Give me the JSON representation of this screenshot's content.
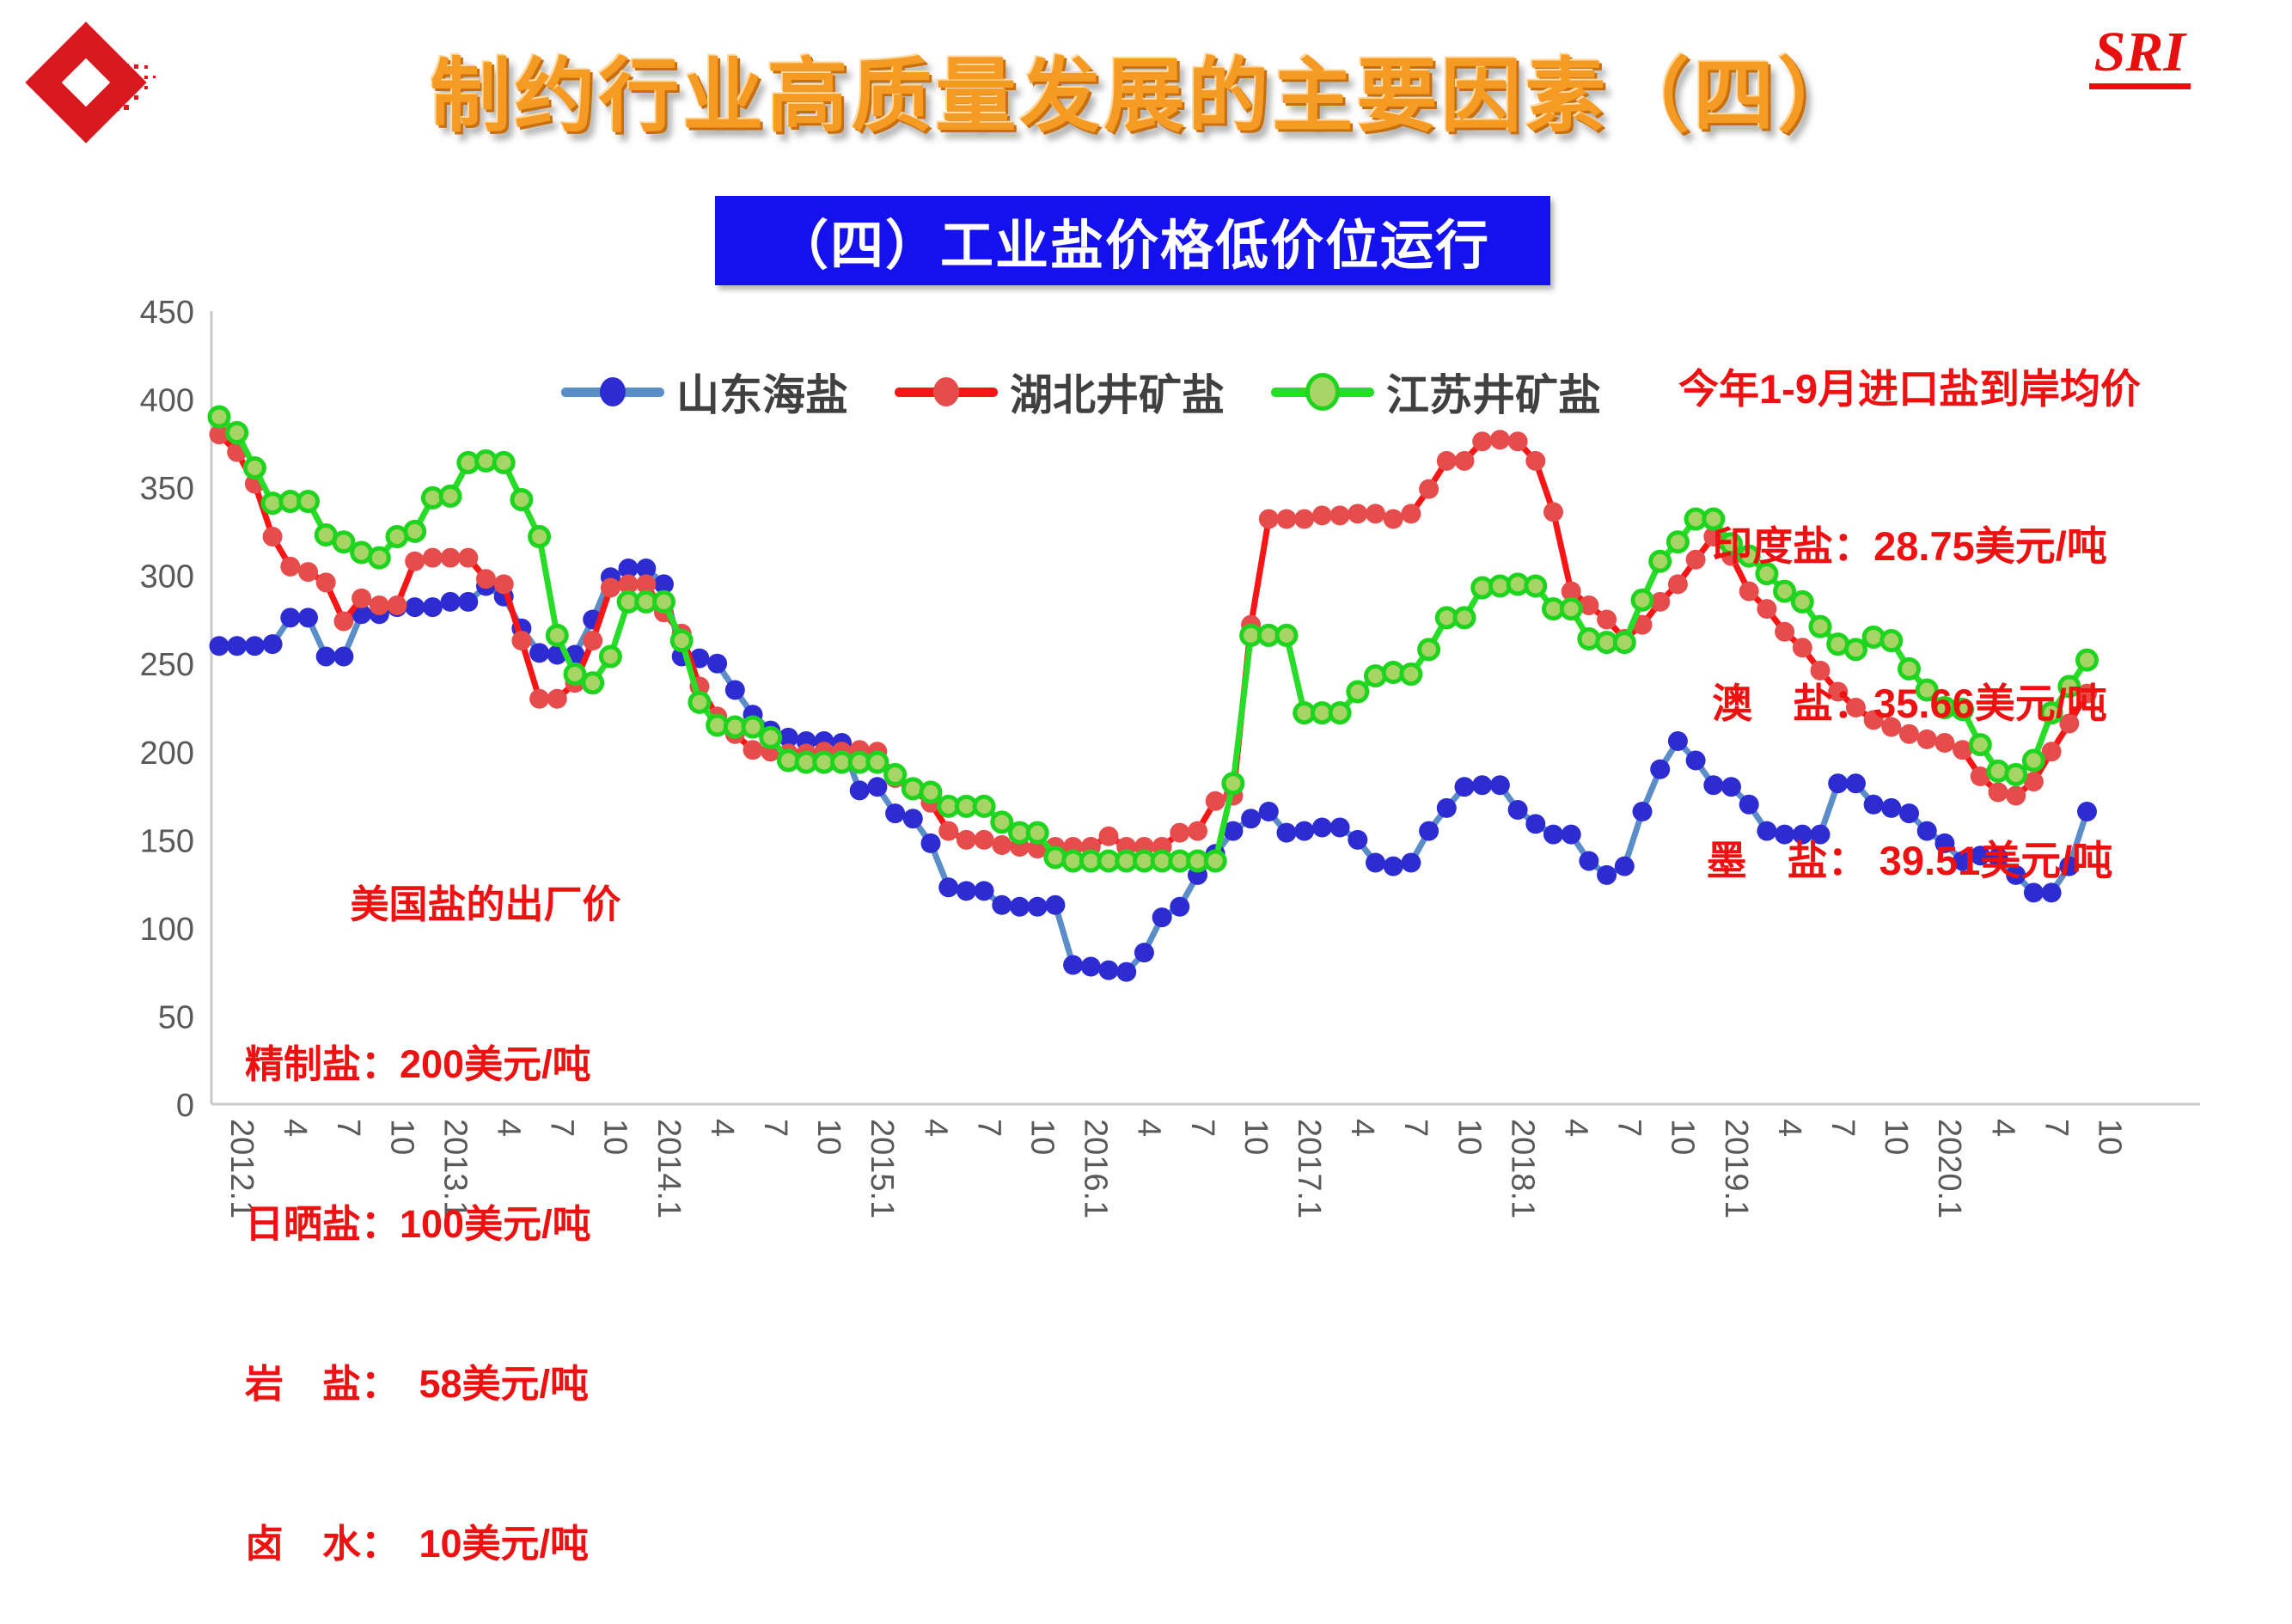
{
  "header": {
    "title": "制约行业高质量发展的主要因素（四）",
    "subtitle": "（四）工业盐价格低价位运行",
    "logo_text": "SRI"
  },
  "annotations": {
    "right": {
      "lines": [
        "今年1-9月进口盐到岸均价",
        "印度盐：28.75美元/吨",
        "澳　盐：35.66美元/吨",
        "墨　盐： 39.51美元/吨"
      ]
    },
    "left": {
      "lines": [
        "美国盐的出厂价",
        "精制盐：200美元/吨",
        "日晒盐：100美元/吨",
        "岩　盐：　58美元/吨",
        "卤　水：　10美元/吨"
      ]
    }
  },
  "chart_data": {
    "type": "line",
    "title": "",
    "xlabel": "",
    "ylabel": "",
    "ylim": [
      0,
      450
    ],
    "ytick_step": 50,
    "grid": false,
    "legend_position": "top",
    "x_unit": "month (2012.1 - 2020.10, monthly points, quarterly tick labels)",
    "x_tick_labels": [
      "2012.1",
      "4",
      "7",
      "10",
      "2013.1",
      "4",
      "7",
      "10",
      "2014.1",
      "4",
      "7",
      "10",
      "2015.1",
      "4",
      "7",
      "10",
      "2016.1",
      "4",
      "7",
      "10",
      "2017.1",
      "4",
      "7",
      "10",
      "2018.1",
      "4",
      "7",
      "10",
      "2019.1",
      "4",
      "7",
      "10",
      "2020.1",
      "4",
      "7",
      "10"
    ],
    "series": [
      {
        "name": "山东海盐",
        "line_color": "#5b8dc8",
        "marker_color": "#2c2cd2",
        "marker_stroke": "",
        "values": [
          260,
          260,
          260,
          261,
          276,
          276,
          254,
          254,
          278,
          278,
          282,
          282,
          282,
          285,
          285,
          294,
          288,
          270,
          256,
          255,
          255,
          275,
          299,
          304,
          304,
          295,
          254,
          253,
          250,
          235,
          221,
          212,
          208,
          206,
          206,
          205,
          178,
          180,
          165,
          162,
          148,
          123,
          121,
          121,
          113,
          112,
          112,
          113,
          79,
          78,
          76,
          75,
          86,
          106,
          112,
          130,
          142,
          155,
          162,
          166,
          154,
          155,
          157,
          157,
          150,
          137,
          135,
          137,
          155,
          168,
          180,
          181,
          181,
          167,
          159,
          153,
          153,
          138,
          130,
          135,
          166,
          190,
          206,
          195,
          181,
          180,
          170,
          155,
          153,
          153,
          153,
          182,
          182,
          170,
          168,
          165,
          155,
          148,
          138,
          141,
          140,
          130,
          120,
          120,
          135,
          166
        ]
      },
      {
        "name": "湖北井矿盐",
        "line_color": "#f81515",
        "marker_color": "#e74c4c",
        "marker_stroke": "",
        "values": [
          380,
          370,
          352,
          322,
          305,
          302,
          296,
          274,
          287,
          283,
          283,
          308,
          310,
          310,
          310,
          298,
          295,
          263,
          230,
          230,
          239,
          263,
          293,
          295,
          295,
          279,
          267,
          237,
          220,
          210,
          201,
          200,
          199,
          199,
          200,
          200,
          201,
          200,
          185,
          178,
          171,
          155,
          150,
          150,
          147,
          146,
          145,
          146,
          146,
          146,
          152,
          146,
          146,
          146,
          154,
          155,
          172,
          175,
          272,
          332,
          332,
          332,
          334,
          334,
          335,
          335,
          332,
          335,
          349,
          365,
          365,
          376,
          377,
          376,
          365,
          336,
          291,
          283,
          275,
          264,
          272,
          285,
          295,
          309,
          322,
          311,
          291,
          281,
          268,
          259,
          246,
          234,
          225,
          218,
          214,
          210,
          207,
          205,
          201,
          186,
          177,
          175,
          183,
          200,
          216,
          233
        ]
      },
      {
        "name": "江苏井矿盐",
        "line_color": "#28dd28",
        "marker_color": "#a6d465",
        "marker_stroke": "#1fd41f",
        "values": [
          390,
          381,
          361,
          341,
          342,
          342,
          323,
          319,
          313,
          310,
          322,
          325,
          344,
          345,
          364,
          365,
          364,
          343,
          322,
          266,
          244,
          239,
          254,
          285,
          285,
          285,
          263,
          228,
          215,
          214,
          214,
          208,
          195,
          194,
          194,
          194,
          194,
          194,
          187,
          179,
          177,
          169,
          169,
          169,
          160,
          154,
          154,
          140,
          138,
          138,
          138,
          138,
          138,
          138,
          138,
          138,
          138,
          182,
          266,
          266,
          266,
          222,
          222,
          222,
          234,
          243,
          245,
          244,
          258,
          276,
          276,
          293,
          294,
          295,
          294,
          281,
          281,
          264,
          262,
          262,
          286,
          308,
          319,
          332,
          332,
          318,
          311,
          301,
          291,
          285,
          271,
          261,
          258,
          265,
          263,
          247,
          235,
          225,
          224,
          204,
          189,
          187,
          195,
          222,
          237,
          252
        ]
      }
    ]
  }
}
